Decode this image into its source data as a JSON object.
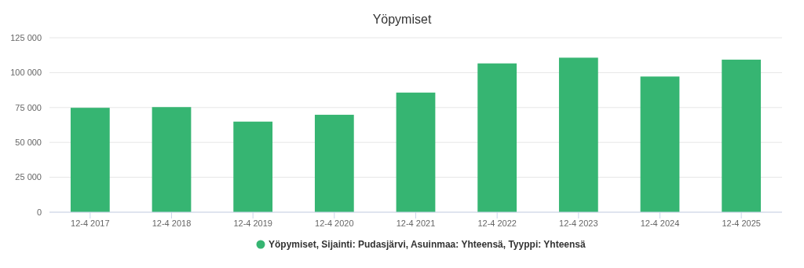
{
  "chart_data": {
    "type": "bar",
    "title": "Yöpymiset",
    "categories": [
      "12-4 2017",
      "12-4 2018",
      "12-4 2019",
      "12-4 2020",
      "12-4 2021",
      "12-4 2022",
      "12-4 2023",
      "12-4 2024",
      "12-4 2025"
    ],
    "series": [
      {
        "name": "Yöpymiset, Sijainti: Pudasjärvi, Asuinmaa: Yhteensä, Tyyppi: Yhteensä",
        "color": "#36b572",
        "values": [
          74800,
          75300,
          64900,
          69800,
          85700,
          106600,
          110700,
          97200,
          109300
        ]
      }
    ],
    "ylim": [
      0,
      125000
    ],
    "yticks": [
      {
        "value": 0,
        "label": "0"
      },
      {
        "value": 25000,
        "label": "25 000"
      },
      {
        "value": 50000,
        "label": "50 000"
      },
      {
        "value": 75000,
        "label": "75 000"
      },
      {
        "value": 100000,
        "label": "100 000"
      },
      {
        "value": 125000,
        "label": "125 000"
      }
    ],
    "grid": "y",
    "legend": "bottom"
  }
}
